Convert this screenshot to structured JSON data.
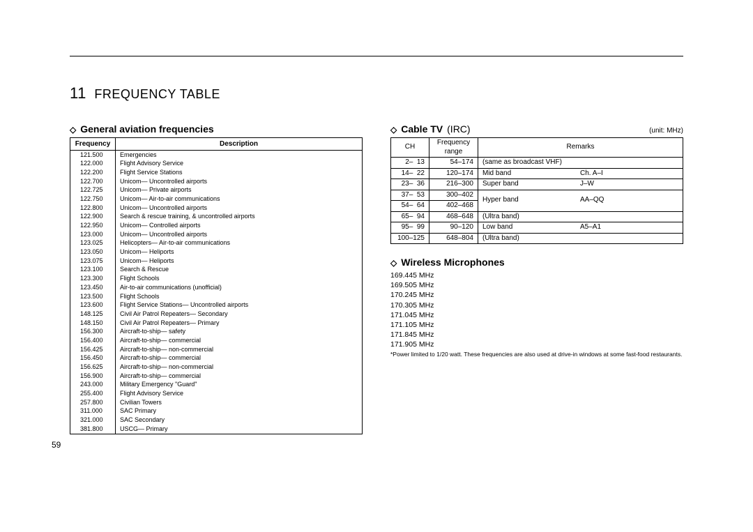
{
  "chapter": {
    "number": "11",
    "title": "FREQUENCY TABLE"
  },
  "page_number": "59",
  "aviation": {
    "heading": "General aviation frequencies",
    "columns": {
      "freq": "Frequency",
      "desc": "Description"
    },
    "rows": [
      {
        "f": "121.500",
        "d": "Emergencies"
      },
      {
        "f": "122.000",
        "d": "Flight Advisory Service"
      },
      {
        "f": "122.200",
        "d": "Flight Service Stations"
      },
      {
        "f": "122.700",
        "d": "Unicom— Uncontrolled airports"
      },
      {
        "f": "122.725",
        "d": "Unicom— Private airports"
      },
      {
        "f": "122.750",
        "d": "Unicom— Air-to-air communications"
      },
      {
        "f": "122.800",
        "d": "Unicom— Uncontrolled airports"
      },
      {
        "f": "122.900",
        "d": "Search & rescue training, & uncontrolled airports"
      },
      {
        "f": "122.950",
        "d": "Unicom— Controlled airports"
      },
      {
        "f": "123.000",
        "d": "Unicom— Uncontrolled airports"
      },
      {
        "f": "123.025",
        "d": "Helicopters— Air-to-air communications"
      },
      {
        "f": "123.050",
        "d": "Unicom— Heliports"
      },
      {
        "f": "123.075",
        "d": "Unicom— Heliports"
      },
      {
        "f": "123.100",
        "d": "Search & Rescue"
      },
      {
        "f": "123.300",
        "d": "Flight Schools"
      },
      {
        "f": "123.450",
        "d": "Air-to-air communications (unofficial)"
      },
      {
        "f": "123.500",
        "d": "Flight Schools"
      },
      {
        "f": "123.600",
        "d": "Flight Service Stations— Uncontrolled airports"
      },
      {
        "f": "148.125",
        "d": "Civil Air Patrol Repeaters— Secondary"
      },
      {
        "f": "148.150",
        "d": "Civil Air Patrol Repeaters— Primary"
      },
      {
        "f": "156.300",
        "d": "Aircraft-to-ship— safety"
      },
      {
        "f": "156.400",
        "d": "Aircraft-to-ship— commercial"
      },
      {
        "f": "156.425",
        "d": "Aircraft-to-ship— non-commercial"
      },
      {
        "f": "156.450",
        "d": "Aircraft-to-ship— commercial"
      },
      {
        "f": "156.625",
        "d": "Aircraft-to-ship— non-commercial"
      },
      {
        "f": "156.900",
        "d": "Aircraft-to-ship— commercial"
      },
      {
        "f": "243.000",
        "d": "Military Emergency \"Guard\""
      },
      {
        "f": "255.400",
        "d": "Flight Advisory Service"
      },
      {
        "f": "257.800",
        "d": "Civilian Towers"
      },
      {
        "f": "311.000",
        "d": "SAC Primary"
      },
      {
        "f": "321.000",
        "d": "SAC Secondary"
      },
      {
        "f": "381.800",
        "d": "USCG— Primary"
      }
    ]
  },
  "cable": {
    "heading": "Cable TV",
    "sub": "(IRC)",
    "unit": "(unit: MHz)",
    "columns": {
      "ch": "CH",
      "range": "Frequency\nrange",
      "remarks": "Remarks"
    },
    "rows": [
      {
        "ch": "2–  13",
        "fr": "54–174",
        "r1": "(same as broadcast VHF)",
        "r2": "",
        "span": 1
      },
      {
        "ch": "14–  22",
        "fr": "120–174",
        "r1": "Mid band",
        "r2": "Ch. A–I",
        "span": 1
      },
      {
        "ch": "23–  36",
        "fr": "216–300",
        "r1": "Super band",
        "r2": "J–W",
        "span": 1
      },
      {
        "ch": "37–  53",
        "fr": "300–402",
        "r1": "Hyper band",
        "r2": "AA–QQ",
        "span": 2
      },
      {
        "ch": "54–  64",
        "fr": "402–468",
        "r1": "",
        "r2": "",
        "span": 0
      },
      {
        "ch": "65–  94",
        "fr": "468–648",
        "r1": "(Ultra band)",
        "r2": "",
        "span": 1
      },
      {
        "ch": "95–  99",
        "fr": "90–120",
        "r1": "Low band",
        "r2": "A5–A1",
        "span": 1
      },
      {
        "ch": "100–125",
        "fr": "648–804",
        "r1": "(Ultra band)",
        "r2": "",
        "span": 1
      }
    ]
  },
  "mics": {
    "heading": "Wireless Microphones",
    "list": [
      "169.445 MHz",
      "169.505 MHz",
      "170.245 MHz",
      "170.305 MHz",
      "171.045 MHz",
      "171.105 MHz",
      "171.845 MHz",
      "171.905 MHz"
    ],
    "note": "*Power limited to 1/20 watt. These frequencies are also used at drive-in windows at some fast-food restaurants."
  }
}
